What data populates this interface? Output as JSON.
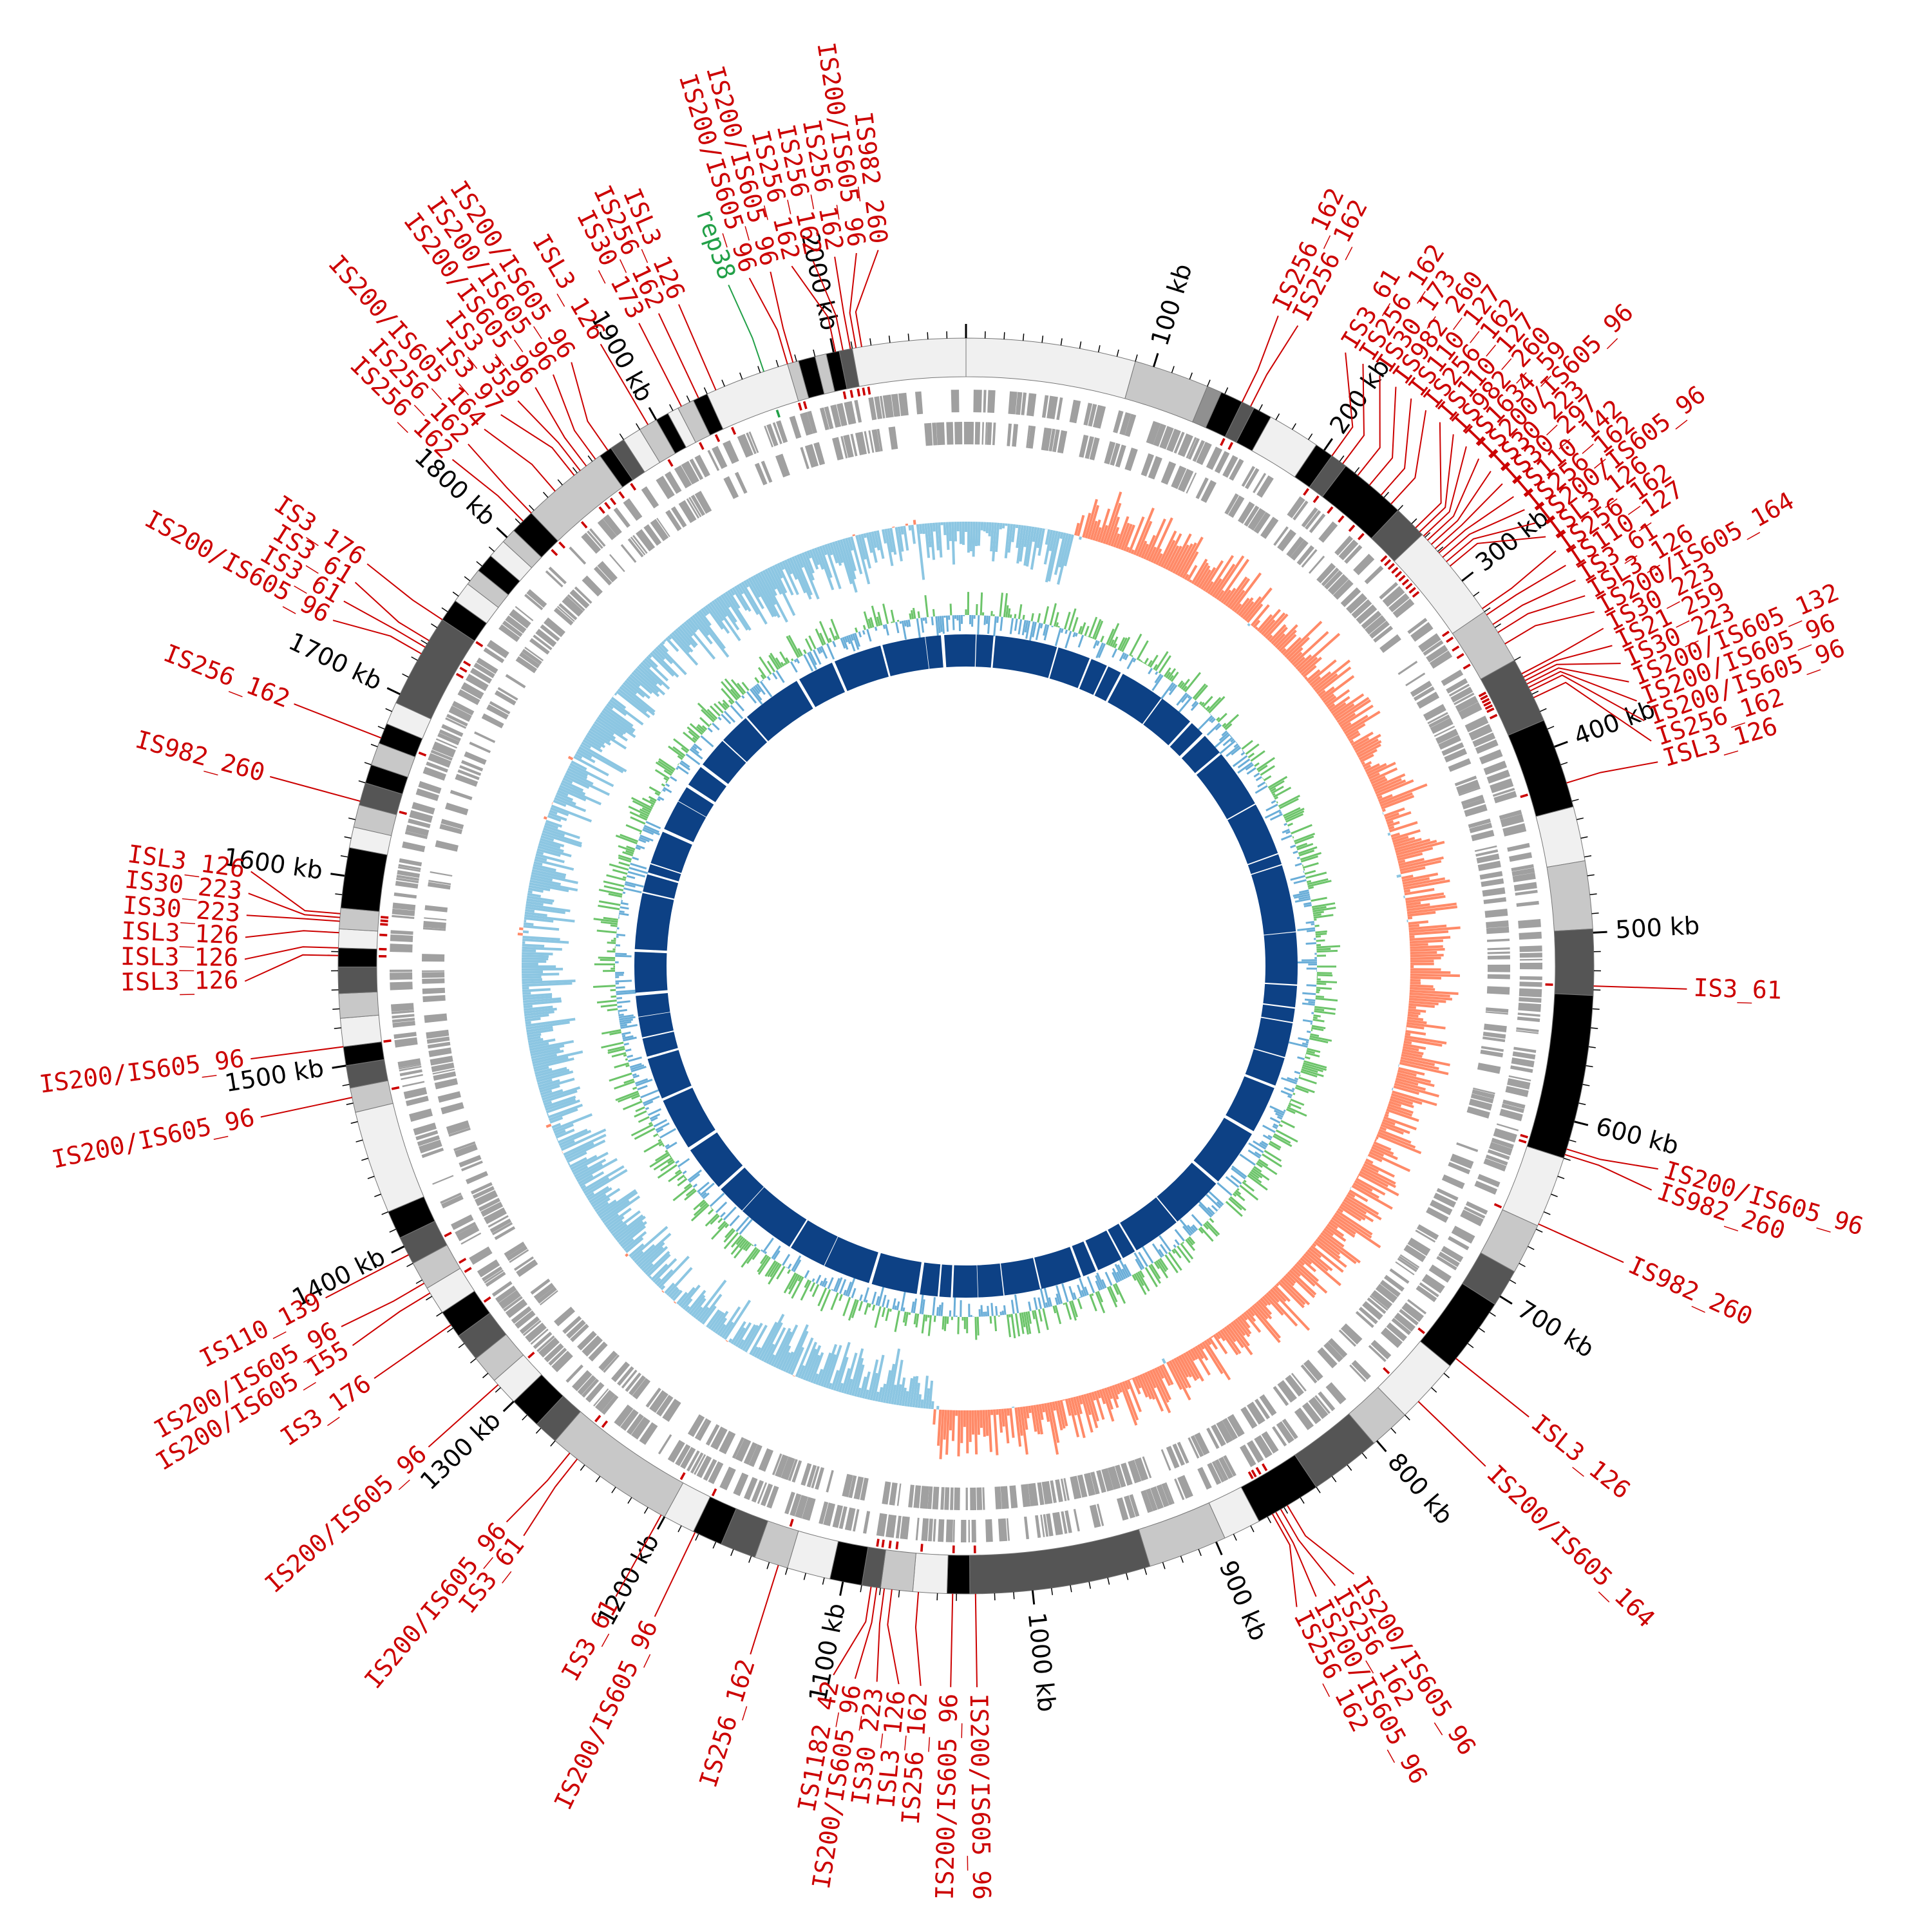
{
  "genome_size_kb": 2070,
  "colors": {
    "is_label": "#cc0000",
    "rep_label": "#22a048",
    "gc_skew_pos": "#ff8a68",
    "gc_skew_neg": "#8cc6e2",
    "gc_content_pos": "#6cc46a",
    "gc_content_neg": "#6aaed8",
    "inner_features": "#0d4185",
    "cds_tracks": "#a0a0a0",
    "contig_shades": [
      "#f0f0f0",
      "#c8c8c8",
      "#909090",
      "#555555",
      "#000000"
    ]
  },
  "ticks": [
    {
      "kb": 100,
      "label": "100 kb"
    },
    {
      "kb": 200,
      "label": "200 kb"
    },
    {
      "kb": 300,
      "label": "300 kb"
    },
    {
      "kb": 400,
      "label": "400 kb"
    },
    {
      "kb": 500,
      "label": "500 kb"
    },
    {
      "kb": 600,
      "label": "600 kb"
    },
    {
      "kb": 700,
      "label": "700 kb"
    },
    {
      "kb": 800,
      "label": "800 kb"
    },
    {
      "kb": 900,
      "label": "900 kb"
    },
    {
      "kb": 1000,
      "label": "1000 kb"
    },
    {
      "kb": 1100,
      "label": "1100 kb"
    },
    {
      "kb": 1200,
      "label": "1200 kb"
    },
    {
      "kb": 1300,
      "label": "1300 kb"
    },
    {
      "kb": 1400,
      "label": "1400 kb"
    },
    {
      "kb": 1500,
      "label": "1500 kb"
    },
    {
      "kb": 1600,
      "label": "1600 kb"
    },
    {
      "kb": 1700,
      "label": "1700 kb"
    },
    {
      "kb": 1800,
      "label": "1800 kb"
    },
    {
      "kb": 1900,
      "label": "1900 kb"
    },
    {
      "kb": 2000,
      "label": "2000 kb"
    }
  ],
  "contig_blocks": [
    {
      "start": 0,
      "end": 90,
      "shade": 0
    },
    {
      "start": 90,
      "end": 130,
      "shade": 1
    },
    {
      "start": 130,
      "end": 138,
      "shade": 2
    },
    {
      "start": 138,
      "end": 150,
      "shade": 4
    },
    {
      "start": 150,
      "end": 157,
      "shade": 3
    },
    {
      "start": 157,
      "end": 167,
      "shade": 4
    },
    {
      "start": 167,
      "end": 195,
      "shade": 0
    },
    {
      "start": 195,
      "end": 205,
      "shade": 4
    },
    {
      "start": 205,
      "end": 214,
      "shade": 3
    },
    {
      "start": 214,
      "end": 250,
      "shade": 4
    },
    {
      "start": 250,
      "end": 268,
      "shade": 3
    },
    {
      "start": 268,
      "end": 320,
      "shade": 0
    },
    {
      "start": 320,
      "end": 350,
      "shade": 1
    },
    {
      "start": 350,
      "end": 385,
      "shade": 3
    },
    {
      "start": 385,
      "end": 433,
      "shade": 4
    },
    {
      "start": 433,
      "end": 462,
      "shade": 0
    },
    {
      "start": 462,
      "end": 498,
      "shade": 1
    },
    {
      "start": 498,
      "end": 533,
      "shade": 3
    },
    {
      "start": 533,
      "end": 620,
      "shade": 4
    },
    {
      "start": 620,
      "end": 658,
      "shade": 0
    },
    {
      "start": 658,
      "end": 685,
      "shade": 1
    },
    {
      "start": 685,
      "end": 705,
      "shade": 3
    },
    {
      "start": 705,
      "end": 745,
      "shade": 4
    },
    {
      "start": 745,
      "end": 780,
      "shade": 0
    },
    {
      "start": 780,
      "end": 802,
      "shade": 1
    },
    {
      "start": 802,
      "end": 840,
      "shade": 3
    },
    {
      "start": 840,
      "end": 875,
      "shade": 4
    },
    {
      "start": 875,
      "end": 895,
      "shade": 0
    },
    {
      "start": 895,
      "end": 937,
      "shade": 1
    },
    {
      "start": 937,
      "end": 1033,
      "shade": 3
    },
    {
      "start": 1033,
      "end": 1045,
      "shade": 4
    },
    {
      "start": 1045,
      "end": 1063,
      "shade": 0
    },
    {
      "start": 1063,
      "end": 1080,
      "shade": 1
    },
    {
      "start": 1080,
      "end": 1090,
      "shade": 3
    },
    {
      "start": 1090,
      "end": 1107,
      "shade": 4
    },
    {
      "start": 1107,
      "end": 1130,
      "shade": 0
    },
    {
      "start": 1130,
      "end": 1148,
      "shade": 1
    },
    {
      "start": 1148,
      "end": 1167,
      "shade": 3
    },
    {
      "start": 1167,
      "end": 1183,
      "shade": 4
    },
    {
      "start": 1183,
      "end": 1200,
      "shade": 0
    },
    {
      "start": 1200,
      "end": 1270,
      "shade": 1
    },
    {
      "start": 1270,
      "end": 1283,
      "shade": 3
    },
    {
      "start": 1283,
      "end": 1300,
      "shade": 4
    },
    {
      "start": 1300,
      "end": 1315,
      "shade": 0
    },
    {
      "start": 1315,
      "end": 1330,
      "shade": 1
    },
    {
      "start": 1330,
      "end": 1345,
      "shade": 3
    },
    {
      "start": 1345,
      "end": 1360,
      "shade": 4
    },
    {
      "start": 1360,
      "end": 1375,
      "shade": 0
    },
    {
      "start": 1375,
      "end": 1390,
      "shade": 1
    },
    {
      "start": 1390,
      "end": 1405,
      "shade": 3
    },
    {
      "start": 1405,
      "end": 1420,
      "shade": 4
    },
    {
      "start": 1420,
      "end": 1475,
      "shade": 0
    },
    {
      "start": 1475,
      "end": 1488,
      "shade": 1
    },
    {
      "start": 1488,
      "end": 1500,
      "shade": 3
    },
    {
      "start": 1500,
      "end": 1510,
      "shade": 4
    },
    {
      "start": 1510,
      "end": 1525,
      "shade": 0
    },
    {
      "start": 1525,
      "end": 1538,
      "shade": 1
    },
    {
      "start": 1538,
      "end": 1552,
      "shade": 3
    },
    {
      "start": 1552,
      "end": 1562,
      "shade": 4
    },
    {
      "start": 1562,
      "end": 1572,
      "shade": 0
    },
    {
      "start": 1572,
      "end": 1583,
      "shade": 1
    },
    {
      "start": 1583,
      "end": 1615,
      "shade": 4
    },
    {
      "start": 1615,
      "end": 1626,
      "shade": 0
    },
    {
      "start": 1626,
      "end": 1638,
      "shade": 1
    },
    {
      "start": 1638,
      "end": 1650,
      "shade": 3
    },
    {
      "start": 1650,
      "end": 1660,
      "shade": 4
    },
    {
      "start": 1660,
      "end": 1672,
      "shade": 1
    },
    {
      "start": 1672,
      "end": 1683,
      "shade": 4
    },
    {
      "start": 1683,
      "end": 1695,
      "shade": 0
    },
    {
      "start": 1695,
      "end": 1745,
      "shade": 3
    },
    {
      "start": 1745,
      "end": 1757,
      "shade": 4
    },
    {
      "start": 1757,
      "end": 1768,
      "shade": 0
    },
    {
      "start": 1768,
      "end": 1777,
      "shade": 1
    },
    {
      "start": 1777,
      "end": 1787,
      "shade": 4
    },
    {
      "start": 1787,
      "end": 1797,
      "shade": 0
    },
    {
      "start": 1797,
      "end": 1805,
      "shade": 1
    },
    {
      "start": 1805,
      "end": 1818,
      "shade": 4
    },
    {
      "start": 1818,
      "end": 1865,
      "shade": 1
    },
    {
      "start": 1865,
      "end": 1872,
      "shade": 4
    },
    {
      "start": 1872,
      "end": 1880,
      "shade": 3
    },
    {
      "start": 1880,
      "end": 1890,
      "shade": 0
    },
    {
      "start": 1890,
      "end": 1900,
      "shade": 1
    },
    {
      "start": 1900,
      "end": 1907,
      "shade": 4
    },
    {
      "start": 1907,
      "end": 1913,
      "shade": 0
    },
    {
      "start": 1913,
      "end": 1922,
      "shade": 1
    },
    {
      "start": 1922,
      "end": 1930,
      "shade": 4
    },
    {
      "start": 1930,
      "end": 1975,
      "shade": 0
    },
    {
      "start": 1975,
      "end": 1981,
      "shade": 1
    },
    {
      "start": 1981,
      "end": 1990,
      "shade": 4
    },
    {
      "start": 1990,
      "end": 1996,
      "shade": 1
    },
    {
      "start": 1996,
      "end": 2003,
      "shade": 4
    },
    {
      "start": 2003,
      "end": 2010,
      "shade": 3
    },
    {
      "start": 2010,
      "end": 2070,
      "shade": 0
    }
  ],
  "elements": [
    {
      "pos": 2015,
      "label": "IS982_260",
      "color": "red"
    },
    {
      "pos": 2012,
      "label": "IS200/IS605_96",
      "color": "red"
    },
    {
      "pos": 2009,
      "label": "IS256_162",
      "color": "red"
    },
    {
      "pos": 2005,
      "label": "IS256_162",
      "color": "red"
    },
    {
      "pos": 2001,
      "label": "IS256_162",
      "color": "red"
    },
    {
      "pos": 1978,
      "label": "IS200/IS605_96",
      "color": "red"
    },
    {
      "pos": 1975,
      "label": "IS200/IS605_96",
      "color": "red"
    },
    {
      "pos": 1962,
      "label": "rep38",
      "color": "green"
    },
    {
      "pos": 1935,
      "label": "ISL3_126",
      "color": "red"
    },
    {
      "pos": 1925,
      "label": "IS256_162",
      "color": "red"
    },
    {
      "pos": 1915,
      "label": "IS30_173",
      "color": "red"
    },
    {
      "pos": 1895,
      "label": "ISL3_126",
      "color": "red"
    },
    {
      "pos": 1870,
      "label": "IS200/IS605_96",
      "color": "red"
    },
    {
      "pos": 1862,
      "label": "IS200/IS605_96",
      "color": "red"
    },
    {
      "pos": 1856,
      "label": "IS200/IS605_96",
      "color": "red"
    },
    {
      "pos": 1852,
      "label": "IS3_359",
      "color": "red"
    },
    {
      "pos": 1848,
      "label": "IS3_97",
      "color": "red"
    },
    {
      "pos": 1835,
      "label": "IS200/IS605_164",
      "color": "red"
    },
    {
      "pos": 1818,
      "label": "IS256_162",
      "color": "red"
    },
    {
      "pos": 1812,
      "label": "IS256_162",
      "color": "red"
    },
    {
      "pos": 1745,
      "label": "IS3_176",
      "color": "red"
    },
    {
      "pos": 1732,
      "label": "IS3_61",
      "color": "red"
    },
    {
      "pos": 1728,
      "label": "IS3_61",
      "color": "red"
    },
    {
      "pos": 1724,
      "label": "IS200/IS605_96",
      "color": "red"
    },
    {
      "pos": 1675,
      "label": "IS256_162",
      "color": "red"
    },
    {
      "pos": 1640,
      "label": "IS982_260",
      "color": "red"
    },
    {
      "pos": 1580,
      "label": "ISL3_126",
      "color": "red"
    },
    {
      "pos": 1578,
      "label": "IS30_223",
      "color": "red"
    },
    {
      "pos": 1576,
      "label": "IS30_223",
      "color": "red"
    },
    {
      "pos": 1570,
      "label": "ISL3_126",
      "color": "red"
    },
    {
      "pos": 1562,
      "label": "ISL3_126",
      "color": "red"
    },
    {
      "pos": 1558,
      "label": "ISL3_126",
      "color": "red"
    },
    {
      "pos": 1510,
      "label": "IS200/IS605_96",
      "color": "red"
    },
    {
      "pos": 1483,
      "label": "IS200/IS605_96",
      "color": "red"
    },
    {
      "pos": 1395,
      "label": "IS110_139",
      "color": "red"
    },
    {
      "pos": 1378,
      "label": "IS200/IS605_96",
      "color": "red"
    },
    {
      "pos": 1372,
      "label": "IS200/IS605_155",
      "color": "red"
    },
    {
      "pos": 1352,
      "label": "IS3_176",
      "color": "red"
    },
    {
      "pos": 1312,
      "label": "IS200/IS605_96",
      "color": "red"
    },
    {
      "pos": 1260,
      "label": "IS200/IS605_96",
      "color": "red"
    },
    {
      "pos": 1255,
      "label": "IS3_61",
      "color": "red"
    },
    {
      "pos": 1202,
      "label": "IS3_61",
      "color": "red"
    },
    {
      "pos": 1182,
      "label": "IS200/IS605_96",
      "color": "red"
    },
    {
      "pos": 1135,
      "label": "IS256_162",
      "color": "red"
    },
    {
      "pos": 1085,
      "label": "IS1182_42",
      "color": "red"
    },
    {
      "pos": 1082,
      "label": "IS200/IS605_96",
      "color": "red"
    },
    {
      "pos": 1078,
      "label": "IS30_223",
      "color": "red"
    },
    {
      "pos": 1074,
      "label": "ISL3_126",
      "color": "red"
    },
    {
      "pos": 1060,
      "label": "IS256_162",
      "color": "red"
    },
    {
      "pos": 1042,
      "label": "IS200/IS605_96",
      "color": "red"
    },
    {
      "pos": 1030,
      "label": "IS200/IS605_96",
      "color": "red"
    },
    {
      "pos": 867,
      "label": "IS256_162",
      "color": "red"
    },
    {
      "pos": 865,
      "label": "IS200/IS605_96",
      "color": "red"
    },
    {
      "pos": 862,
      "label": "IS256_162",
      "color": "red"
    },
    {
      "pos": 858,
      "label": "IS200/IS605_96",
      "color": "red"
    },
    {
      "pos": 770,
      "label": "IS200/IS605_164",
      "color": "red"
    },
    {
      "pos": 740,
      "label": "ISL3_126",
      "color": "red"
    },
    {
      "pos": 657,
      "label": "IS982_260",
      "color": "red"
    },
    {
      "pos": 618,
      "label": "IS982_260",
      "color": "red"
    },
    {
      "pos": 615,
      "label": "IS200/IS605_96",
      "color": "red"
    },
    {
      "pos": 528,
      "label": "IS3_61",
      "color": "red"
    },
    {
      "pos": 420,
      "label": "ISL3_126",
      "color": "red"
    },
    {
      "pos": 372,
      "label": "IS256_162",
      "color": "red"
    },
    {
      "pos": 368,
      "label": "IS200/IS605_96",
      "color": "red"
    },
    {
      "pos": 366,
      "label": "IS200/IS605_96",
      "color": "red"
    },
    {
      "pos": 364,
      "label": "IS200/IS605_132",
      "color": "red"
    },
    {
      "pos": 362,
      "label": "IS30_223",
      "color": "red"
    },
    {
      "pos": 360,
      "label": "IS21_259",
      "color": "red"
    },
    {
      "pos": 358,
      "label": "IS30_223",
      "color": "red"
    },
    {
      "pos": 340,
      "label": "IS200/IS605_164",
      "color": "red"
    },
    {
      "pos": 333,
      "label": "ISL3_126",
      "color": "red"
    },
    {
      "pos": 328,
      "label": "IS3_61",
      "color": "red"
    },
    {
      "pos": 322,
      "label": "IS110_127",
      "color": "red"
    },
    {
      "pos": 318,
      "label": "IS256_162",
      "color": "red"
    },
    {
      "pos": 290,
      "label": "ISL3_126",
      "color": "red"
    },
    {
      "pos": 287,
      "label": "IS200/IS605_96",
      "color": "red"
    },
    {
      "pos": 284,
      "label": "IS256_162",
      "color": "red"
    },
    {
      "pos": 281,
      "label": "IS110_142",
      "color": "red"
    },
    {
      "pos": 278,
      "label": "IS30_297",
      "color": "red"
    },
    {
      "pos": 275,
      "label": "IS30_223",
      "color": "red"
    },
    {
      "pos": 272,
      "label": "IS200/IS605_96",
      "color": "red"
    },
    {
      "pos": 269,
      "label": "IS1634_59",
      "color": "red"
    },
    {
      "pos": 266,
      "label": "IS982_260",
      "color": "red"
    },
    {
      "pos": 263,
      "label": "IS110_127",
      "color": "red"
    },
    {
      "pos": 245,
      "label": "IS256_162",
      "color": "red"
    },
    {
      "pos": 238,
      "label": "IS110_127",
      "color": "red"
    },
    {
      "pos": 230,
      "label": "IS982_260",
      "color": "red"
    },
    {
      "pos": 222,
      "label": "IS30_173",
      "color": "red"
    },
    {
      "pos": 212,
      "label": "IS256_162",
      "color": "red"
    },
    {
      "pos": 205,
      "label": "IS3_61",
      "color": "red"
    },
    {
      "pos": 155,
      "label": "IS256_162",
      "color": "red"
    },
    {
      "pos": 150,
      "label": "IS256_162",
      "color": "red"
    }
  ]
}
